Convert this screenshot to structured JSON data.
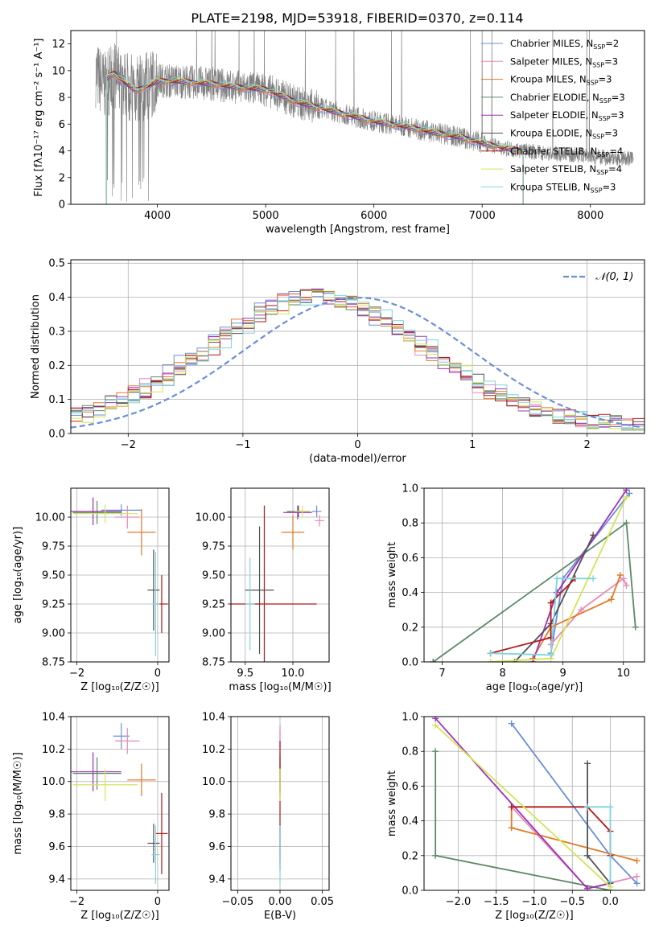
{
  "title": "PLATE=2198, MJD=53918, FIBERID=0370, z=0.114",
  "colors": [
    "#6a8fd8",
    "#e889b8",
    "#e27a26",
    "#5a8a66",
    "#a030b8",
    "#525252",
    "#b01818",
    "#d2e458",
    "#7ed4de"
  ],
  "chart_data": [
    {
      "id": "spectrum",
      "type": "line",
      "xlabel": "wavelength [Angstrom, rest frame]",
      "ylabel": "Flux [fλ10⁻¹⁷ erg cm⁻² s⁻¹ A⁻¹]",
      "xlim": [
        3200,
        8500
      ],
      "ylim": [
        0,
        13
      ],
      "xticks": [
        4000,
        5000,
        6000,
        7000,
        8000
      ],
      "yticks": [
        0,
        2,
        4,
        6,
        8,
        10,
        12
      ],
      "grid": false,
      "legend_position": "top-right",
      "data_color": "#7f7f7f",
      "data_anchors": {
        "x": [
          3430,
          3470,
          3520,
          3600,
          3700,
          3800,
          3900,
          4000,
          4200,
          4500,
          4800,
          5000,
          5300,
          5600,
          6000,
          6300,
          6600,
          6800,
          7000,
          7200,
          7400,
          7600,
          7900,
          8100,
          8400
        ],
        "y": [
          9.8,
          9.3,
          8.8,
          9.5,
          9.0,
          8.6,
          8.8,
          9.3,
          9.2,
          9.0,
          8.7,
          8.6,
          7.6,
          7.0,
          6.2,
          5.8,
          5.3,
          5.0,
          4.6,
          4.2,
          4.0,
          3.8,
          3.7,
          3.5,
          3.4
        ]
      },
      "model_anchors": {
        "x": [
          3530,
          3600,
          3700,
          3800,
          3900,
          4000,
          4200,
          4500,
          4800,
          5000,
          5300,
          5600,
          6000,
          6300,
          6600,
          6800,
          7000,
          7200,
          7380
        ],
        "y": [
          9.4,
          9.8,
          9.1,
          8.5,
          8.8,
          9.2,
          9.2,
          9.0,
          8.7,
          8.6,
          7.6,
          7.0,
          6.2,
          5.8,
          5.3,
          5.0,
          4.6,
          4.2,
          4.0
        ]
      },
      "series": [
        {
          "label": "Chabrier MILES, N",
          "sub": "SSP",
          "suffix": "=2"
        },
        {
          "label": "Salpeter MILES, N",
          "sub": "SSP",
          "suffix": "=3"
        },
        {
          "label": "Kroupa MILES, N",
          "sub": "SSP",
          "suffix": "=3"
        },
        {
          "label": "Chabrier ELODIE, N",
          "sub": "SSP",
          "suffix": "=3"
        },
        {
          "label": "Salpeter ELODIE, N",
          "sub": "SSP",
          "suffix": "=3"
        },
        {
          "label": "Kroupa ELODIE, N",
          "sub": "SSP",
          "suffix": "=3"
        },
        {
          "label": "Chabrier STELIB, N",
          "sub": "SSP",
          "suffix": "=4"
        },
        {
          "label": "Salpeter STELIB, N",
          "sub": "SSP",
          "suffix": "=4"
        },
        {
          "label": "Kroupa STELIB, N",
          "sub": "SSP",
          "suffix": "=3"
        }
      ]
    },
    {
      "id": "residuals",
      "type": "line",
      "xlabel": "(data-model)/error",
      "ylabel": "Normed distribution",
      "xlim": [
        -2.5,
        2.5
      ],
      "ylim": [
        0,
        0.51
      ],
      "xticks": [
        -2,
        -1,
        0,
        1,
        2
      ],
      "yticks": [
        0.0,
        0.1,
        0.2,
        0.3,
        0.4,
        0.5
      ],
      "grid": true,
      "legend_position": "top-right",
      "gaussian_label": "𝒩(0, 1)",
      "gaussian_color": "#6a8fd8"
    },
    {
      "id": "age_vs_Z",
      "type": "scatter",
      "xlabel": "Z [log₁₀(Z/Z☉)]",
      "ylabel": "age  [log₁₀(age/yr)]",
      "xlim": [
        -2.15,
        0.28
      ],
      "ylim": [
        8.75,
        10.25
      ],
      "xticks": [
        -2,
        0
      ],
      "yticks": [
        8.75,
        9.0,
        9.25,
        9.5,
        9.75,
        10.0
      ],
      "grid": true,
      "points": [
        {
          "x": -0.9,
          "y": 10.06,
          "xerr": 0.5,
          "yerr": 0.05
        },
        {
          "x": -0.75,
          "y": 10.0,
          "xerr": 0.3,
          "yerr": 0.1
        },
        {
          "x": -0.4,
          "y": 9.87,
          "xerr": 0.35,
          "yerr": 0.2
        },
        {
          "x": -1.5,
          "y": 10.04,
          "xerr": 0.6,
          "yerr": 0.1
        },
        {
          "x": -1.6,
          "y": 10.05,
          "xerr": 0.7,
          "yerr": 0.12
        },
        {
          "x": -0.1,
          "y": 9.37,
          "xerr": 0.15,
          "yerr": 0.35
        },
        {
          "x": 0.1,
          "y": 9.25,
          "xerr": 0.15,
          "yerr": 0.25
        },
        {
          "x": -1.3,
          "y": 10.03,
          "xerr": 0.8,
          "yerr": 0.08
        },
        {
          "x": -0.05,
          "y": 9.25,
          "xerr": 0.1,
          "yerr": 0.45
        }
      ]
    },
    {
      "id": "age_vs_mass",
      "type": "scatter",
      "xlabel": "mass [log₁₀(M/M☉)]",
      "ylabel": "",
      "xlim": [
        9.35,
        10.38
      ],
      "ylim": [
        8.75,
        10.25
      ],
      "xticks": [
        9.5,
        10.0
      ],
      "yticks": [
        8.75,
        9.0,
        9.25,
        9.5,
        9.75,
        10.0
      ],
      "grid": true,
      "points": [
        {
          "x": 10.25,
          "y": 10.05,
          "xerr": 0.05,
          "yerr": 0.05
        },
        {
          "x": 10.28,
          "y": 9.97,
          "xerr": 0.05,
          "yerr": 0.05
        },
        {
          "x": 10.0,
          "y": 9.87,
          "xerr": 0.12,
          "yerr": 0.15
        },
        {
          "x": 10.06,
          "y": 10.05,
          "xerr": 0.12,
          "yerr": 0.05
        },
        {
          "x": 10.05,
          "y": 10.04,
          "xerr": 0.15,
          "yerr": 0.06
        },
        {
          "x": 9.65,
          "y": 9.37,
          "xerr": 0.15,
          "yerr": 0.55
        },
        {
          "x": 9.7,
          "y": 9.25,
          "xerr": 0.55,
          "yerr": 0.85
        },
        {
          "x": 10.1,
          "y": 10.05,
          "xerr": 0.08,
          "yerr": 0.05
        },
        {
          "x": 9.55,
          "y": 9.25,
          "xerr": 0.05,
          "yerr": 0.4
        }
      ]
    },
    {
      "id": "massweight_vs_age",
      "type": "line",
      "xlabel": "age  [log₁₀(age/yr)]",
      "ylabel": "mass weight",
      "xlim": [
        6.7,
        10.35
      ],
      "ylim": [
        0,
        1.0
      ],
      "xticks": [
        7,
        8,
        9,
        10
      ],
      "yticks": [
        0.0,
        0.2,
        0.4,
        0.6,
        0.8,
        1.0
      ],
      "grid": true,
      "lines": [
        {
          "x": [
            8.8,
            9.0,
            10.1
          ],
          "y": [
            0.05,
            0.48,
            0.97
          ]
        },
        {
          "x": [
            8.8,
            9.3,
            10.0,
            10.05
          ],
          "y": [
            0.1,
            0.3,
            0.48,
            0.44
          ]
        },
        {
          "x": [
            8.5,
            8.8,
            9.8,
            9.95
          ],
          "y": [
            0.02,
            0.2,
            0.36,
            0.5
          ]
        },
        {
          "x": [
            6.85,
            10.05,
            10.2
          ],
          "y": [
            0.0,
            0.8,
            0.2
          ]
        },
        {
          "x": [
            8.5,
            8.9,
            10.05
          ],
          "y": [
            0.0,
            0.4,
            0.99
          ]
        },
        {
          "x": [
            8.2,
            8.8,
            9.5
          ],
          "y": [
            0.0,
            0.22,
            0.73
          ]
        },
        {
          "x": [
            7.8,
            8.8,
            8.8,
            9.2
          ],
          "y": [
            0.05,
            0.14,
            0.34,
            0.48
          ]
        },
        {
          "x": [
            7.8,
            8.8,
            10.05
          ],
          "y": [
            0.0,
            0.02,
            0.95
          ]
        },
        {
          "x": [
            7.8,
            8.8,
            8.9,
            9.5
          ],
          "y": [
            0.05,
            0.04,
            0.48,
            0.48
          ]
        }
      ]
    },
    {
      "id": "mass_vs_Z",
      "type": "scatter",
      "xlabel": "Z [log₁₀(Z/Z☉)]",
      "ylabel": "mass [log₁₀(M/M☉)]",
      "xlim": [
        -2.15,
        0.28
      ],
      "ylim": [
        9.33,
        10.4
      ],
      "xticks": [
        -2,
        0
      ],
      "yticks": [
        9.4,
        9.6,
        9.8,
        10.0,
        10.2,
        10.4
      ],
      "grid": true,
      "points": [
        {
          "x": -0.9,
          "y": 10.28,
          "xerr": 0.2,
          "yerr": 0.08
        },
        {
          "x": -0.75,
          "y": 10.25,
          "xerr": 0.3,
          "yerr": 0.08
        },
        {
          "x": -0.4,
          "y": 10.01,
          "xerr": 0.35,
          "yerr": 0.1
        },
        {
          "x": -1.5,
          "y": 10.05,
          "xerr": 0.6,
          "yerr": 0.1
        },
        {
          "x": -1.6,
          "y": 10.06,
          "xerr": 0.7,
          "yerr": 0.12
        },
        {
          "x": -0.1,
          "y": 9.62,
          "xerr": 0.15,
          "yerr": 0.12
        },
        {
          "x": 0.1,
          "y": 9.68,
          "xerr": 0.15,
          "yerr": 0.25
        },
        {
          "x": -1.3,
          "y": 9.98,
          "xerr": 0.8,
          "yerr": 0.1
        },
        {
          "x": -0.05,
          "y": 9.55,
          "xerr": 0.1,
          "yerr": 0.18
        }
      ]
    },
    {
      "id": "mass_vs_EBV",
      "type": "scatter",
      "xlabel": "E(B-V)",
      "ylabel": "",
      "xlim": [
        -0.058,
        0.058
      ],
      "ylim": [
        9.33,
        10.4
      ],
      "xticks": [
        -0.05,
        0.0,
        0.05
      ],
      "xticklabels": [
        "−0.05",
        "0.00",
        "0.05"
      ],
      "yticks": [
        9.4,
        9.6,
        9.8,
        10.0,
        10.2,
        10.4
      ],
      "grid": true,
      "points": [
        {
          "x": 0.0,
          "y": 10.26,
          "xerr": 0.0,
          "yerr": 0.06
        },
        {
          "x": 0.0,
          "y": 10.25,
          "xerr": 0.0,
          "yerr": 0.1
        },
        {
          "x": 0.0,
          "y": 10.0,
          "xerr": 0.0,
          "yerr": 0.1
        },
        {
          "x": 0.0,
          "y": 10.05,
          "xerr": 0.0,
          "yerr": 0.1
        },
        {
          "x": 0.0,
          "y": 10.05,
          "xerr": 0.0,
          "yerr": 0.12
        },
        {
          "x": 0.0,
          "y": 9.62,
          "xerr": 0.0,
          "yerr": 0.12
        },
        {
          "x": 0.0,
          "y": 9.85,
          "xerr": 0.0,
          "yerr": 0.4
        },
        {
          "x": 0.0,
          "y": 9.98,
          "xerr": 0.0,
          "yerr": 0.1
        },
        {
          "x": 0.0,
          "y": 9.55,
          "xerr": 0.0,
          "yerr": 0.18
        }
      ]
    },
    {
      "id": "massweight_vs_Z",
      "type": "line",
      "xlabel": "Z [log₁₀(Z/Z☉)]",
      "ylabel": "mass weight",
      "xlim": [
        -2.45,
        0.45
      ],
      "ylim": [
        0,
        1.0
      ],
      "xticks": [
        -2.0,
        -1.5,
        -1.0,
        -0.5,
        0.0
      ],
      "xticklabels": [
        "−2.0",
        "−1.5",
        "−1.0",
        "−0.5",
        "0.0"
      ],
      "yticks": [
        0.0,
        0.2,
        0.4,
        0.6,
        0.8,
        1.0
      ],
      "grid": true,
      "lines": [
        {
          "x": [
            -1.3,
            0.0,
            0.35
          ],
          "y": [
            0.96,
            0.2,
            0.04
          ]
        },
        {
          "x": [
            -1.3,
            -0.3,
            0.35
          ],
          "y": [
            0.48,
            0.01,
            0.08
          ]
        },
        {
          "x": [
            -1.3,
            -1.3,
            0.35
          ],
          "y": [
            0.48,
            0.36,
            0.17
          ]
        },
        {
          "x": [
            -2.3,
            -2.3,
            0.0
          ],
          "y": [
            0.8,
            0.2,
            0.0
          ]
        },
        {
          "x": [
            -2.3,
            -0.3,
            0.0
          ],
          "y": [
            0.99,
            0.01,
            0.04
          ]
        },
        {
          "x": [
            -0.3,
            -0.3,
            0.0
          ],
          "y": [
            0.73,
            0.2,
            0.04
          ]
        },
        {
          "x": [
            -1.3,
            -0.3,
            0.0,
            0.0
          ],
          "y": [
            0.48,
            0.48,
            0.34,
            0.2
          ]
        },
        {
          "x": [
            -2.3,
            0.0
          ],
          "y": [
            0.95,
            0.02
          ]
        },
        {
          "x": [
            -0.3,
            0.0,
            0.0
          ],
          "y": [
            0.48,
            0.48,
            0.05
          ]
        }
      ]
    }
  ]
}
